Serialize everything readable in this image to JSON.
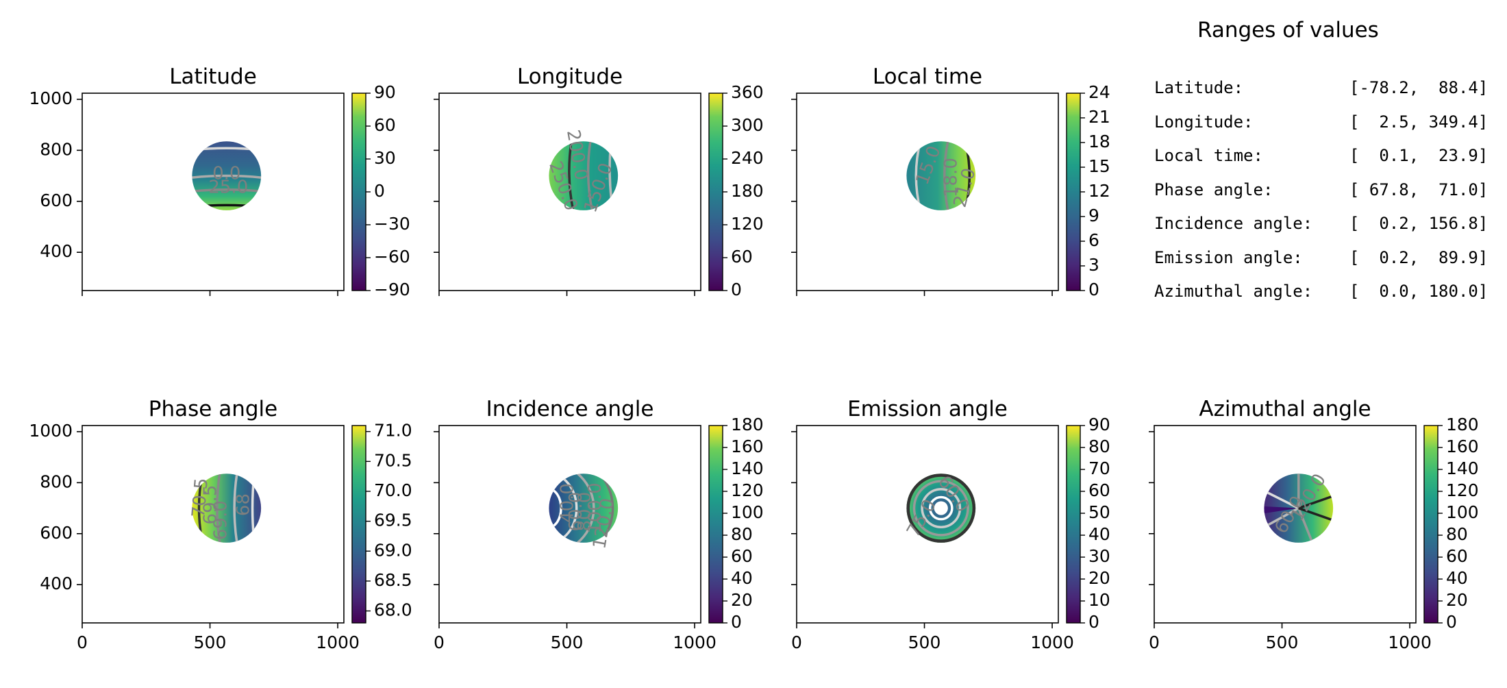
{
  "ranges": {
    "title": "Ranges of values",
    "rows": [
      {
        "label": "Latitude:",
        "value": "[-78.2,  88.4]"
      },
      {
        "label": "Longitude:",
        "value": "[  2.5, 349.4]"
      },
      {
        "label": "Local time:",
        "value": "[  0.1,  23.9]"
      },
      {
        "label": "Phase angle:",
        "value": "[ 67.8,  71.0]"
      },
      {
        "label": "Incidence angle:",
        "value": "[  0.2, 156.8]"
      },
      {
        "label": "Emission angle:",
        "value": "[  0.2,  89.9]"
      },
      {
        "label": "Azimuthal angle:",
        "value": "[  0.0, 180.0]"
      }
    ]
  },
  "chart_data": [
    {
      "type": "heatmap",
      "title": "Latitude",
      "xlim": [
        0,
        1024
      ],
      "ylim": [
        250,
        1024
      ],
      "x_ticks": [
        "0",
        "500",
        "1000"
      ],
      "y_ticks": [
        "400",
        "600",
        "800",
        "1000"
      ],
      "disk": {
        "cx": 565,
        "cy": 700,
        "r": 135
      },
      "clim": [
        -90,
        90
      ],
      "cbar_ticks": [
        "90",
        "60",
        "30",
        "0",
        "−30",
        "−60",
        "−90"
      ],
      "contour_labels": [
        "0.0",
        "25.0"
      ]
    },
    {
      "type": "heatmap",
      "title": "Longitude",
      "xlim": [
        0,
        1024
      ],
      "ylim": [
        250,
        1024
      ],
      "x_ticks": [
        "0",
        "500",
        "1000"
      ],
      "y_ticks": [
        "400",
        "600",
        "800",
        "1000"
      ],
      "disk": {
        "cx": 565,
        "cy": 700,
        "r": 135
      },
      "clim": [
        0,
        360
      ],
      "cbar_ticks": [
        "360",
        "300",
        "240",
        "180",
        "120",
        "60",
        "0"
      ],
      "contour_labels": [
        "200.0",
        "250.0",
        "150.0"
      ]
    },
    {
      "type": "heatmap",
      "title": "Local time",
      "xlim": [
        0,
        1024
      ],
      "ylim": [
        250,
        1024
      ],
      "x_ticks": [
        "0",
        "500",
        "1000"
      ],
      "y_ticks": [
        "400",
        "600",
        "800",
        "1000"
      ],
      "disk": {
        "cx": 565,
        "cy": 700,
        "r": 135
      },
      "clim": [
        0,
        24
      ],
      "cbar_ticks": [
        "24",
        "21",
        "18",
        "15",
        "12",
        "9",
        "6",
        "3",
        "0"
      ],
      "contour_labels": [
        "15.0",
        "18.0",
        "21.0"
      ]
    },
    {
      "type": "heatmap",
      "title": "Phase angle",
      "xlim": [
        0,
        1024
      ],
      "ylim": [
        250,
        1024
      ],
      "x_ticks": [
        "0",
        "500",
        "1000"
      ],
      "y_ticks": [
        "400",
        "600",
        "800",
        "1000"
      ],
      "disk": {
        "cx": 565,
        "cy": 700,
        "r": 135
      },
      "clim": [
        67.8,
        71.1
      ],
      "cbar_ticks": [
        "71.0",
        "70.5",
        "70.0",
        "69.5",
        "69.0",
        "68.5",
        "68.0"
      ],
      "contour_labels": [
        "70.5",
        "69.5",
        "69.0",
        "68"
      ]
    },
    {
      "type": "heatmap",
      "title": "Incidence angle",
      "xlim": [
        0,
        1024
      ],
      "ylim": [
        250,
        1024
      ],
      "x_ticks": [
        "0",
        "500",
        "1000"
      ],
      "y_ticks": [
        "400",
        "600",
        "800",
        "1000"
      ],
      "disk": {
        "cx": 565,
        "cy": 700,
        "r": 135
      },
      "clim": [
        0,
        180
      ],
      "cbar_ticks": [
        "180",
        "160",
        "140",
        "120",
        "100",
        "80",
        "60",
        "40",
        "20",
        "0"
      ],
      "contour_labels": [
        "40.0",
        "60.0",
        "80.0",
        "100.0",
        "120.0"
      ]
    },
    {
      "type": "heatmap",
      "title": "Emission angle",
      "xlim": [
        0,
        1024
      ],
      "ylim": [
        250,
        1024
      ],
      "x_ticks": [
        "0",
        "500",
        "1000"
      ],
      "y_ticks": [
        "400",
        "600",
        "800",
        "1000"
      ],
      "disk": {
        "cx": 565,
        "cy": 700,
        "r": 135
      },
      "clim": [
        0,
        90
      ],
      "cbar_ticks": [
        "90",
        "80",
        "70",
        "60",
        "50",
        "40",
        "30",
        "20",
        "10",
        "0"
      ],
      "contour_labels": [
        "60.0",
        "75.0"
      ]
    },
    {
      "type": "heatmap",
      "title": "Azimuthal angle",
      "xlim": [
        0,
        1024
      ],
      "ylim": [
        250,
        1024
      ],
      "x_ticks": [
        "0",
        "500",
        "1000"
      ],
      "y_ticks": [
        "400",
        "600",
        "800",
        "1000"
      ],
      "disk": {
        "cx": 565,
        "cy": 700,
        "r": 135
      },
      "clim": [
        0,
        180
      ],
      "cbar_ticks": [
        "180",
        "160",
        "140",
        "120",
        "100",
        "80",
        "60",
        "40",
        "20",
        "0"
      ],
      "contour_labels": [
        "120.0",
        "60.0"
      ]
    }
  ],
  "colormap": "viridis"
}
